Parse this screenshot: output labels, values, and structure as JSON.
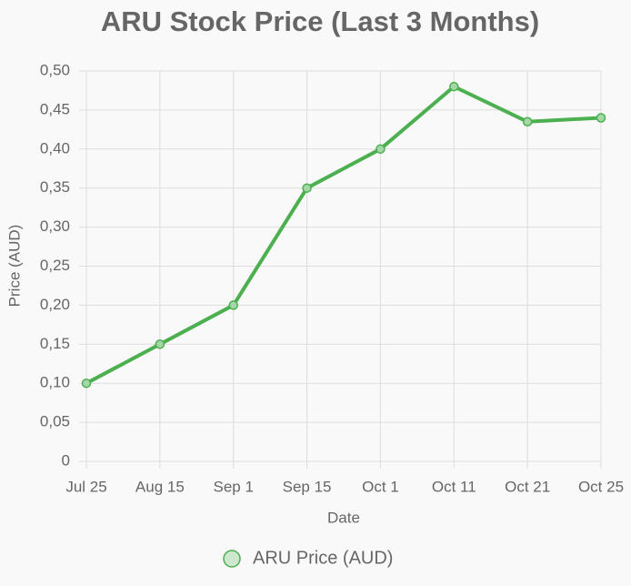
{
  "chart_data": {
    "type": "line",
    "title": "ARU Stock Price (Last 3 Months)",
    "x_label": "Date",
    "y_label": "Price (AUD)",
    "categories": [
      "Jul 25",
      "Aug 15",
      "Sep 1",
      "Sep 15",
      "Oct 1",
      "Oct 11",
      "Oct 21",
      "Oct 25"
    ],
    "series": [
      {
        "name": "ARU Price (AUD)",
        "color": "#4caf50",
        "values": [
          0.1,
          0.15,
          0.2,
          0.35,
          0.4,
          0.48,
          0.435,
          0.44
        ]
      }
    ],
    "ylim": [
      0,
      0.5
    ],
    "yticks": [
      0,
      {
        "value": 0.05,
        "label": "0,05"
      },
      {
        "value": 0.1,
        "label": "0,10"
      },
      {
        "value": 0.15,
        "label": "0,15"
      },
      {
        "value": 0.2,
        "label": "0,20"
      },
      {
        "value": 0.25,
        "label": "0,25"
      },
      {
        "value": 0.3,
        "label": "0,30"
      },
      {
        "value": 0.35,
        "label": "0,35"
      },
      {
        "value": 0.4,
        "label": "0,40"
      },
      {
        "value": 0.45,
        "label": "0,45"
      },
      {
        "value": 0.5,
        "label": "0,50"
      }
    ],
    "grid": true,
    "legend": "bottom"
  }
}
